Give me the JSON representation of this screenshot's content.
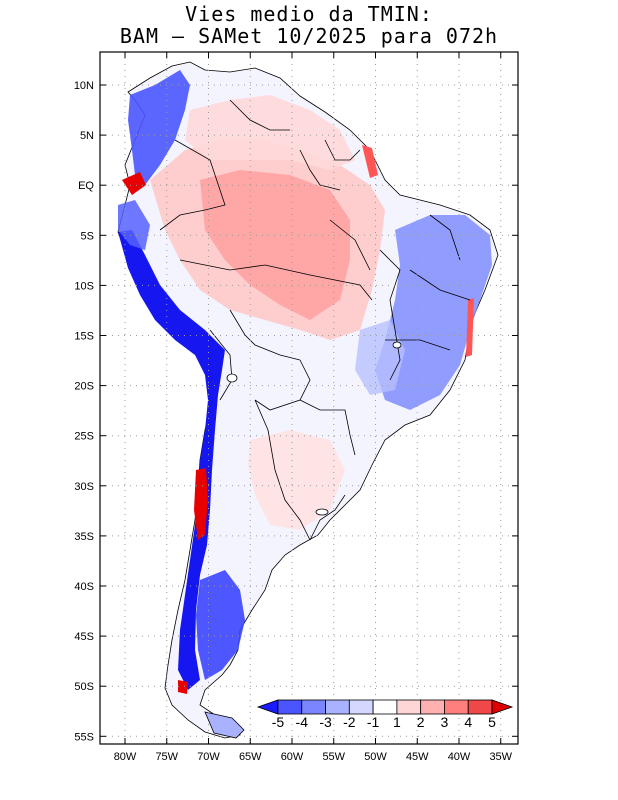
{
  "title": {
    "line1": "Vies medio da TMIN:",
    "line2": "BAM – SAMet 10/2025  para 072h"
  },
  "axes": {
    "lat_labels": [
      "10N",
      "5N",
      "EQ",
      "5S",
      "10S",
      "15S",
      "20S",
      "25S",
      "30S",
      "35S",
      "40S",
      "45S",
      "50S",
      "55S"
    ],
    "lon_labels": [
      "80W",
      "75W",
      "70W",
      "65W",
      "60W",
      "55W",
      "50W",
      "45W",
      "40W",
      "35W"
    ]
  },
  "colorbar": {
    "labels": [
      "-5",
      "-4",
      "-3",
      "-2",
      "-1",
      "1",
      "2",
      "3",
      "4",
      "5"
    ],
    "colors": [
      "#1a1aff",
      "#4a55ff",
      "#7a85ff",
      "#a8b2ff",
      "#d4d8ff",
      "#ffffff",
      "#ffd6d6",
      "#ffb0b0",
      "#ff7f7f",
      "#f04848",
      "#e00000"
    ]
  },
  "colors": {
    "frame": "#000000",
    "grid": "#9a9a9a",
    "land_base": "#eef0ff"
  }
}
